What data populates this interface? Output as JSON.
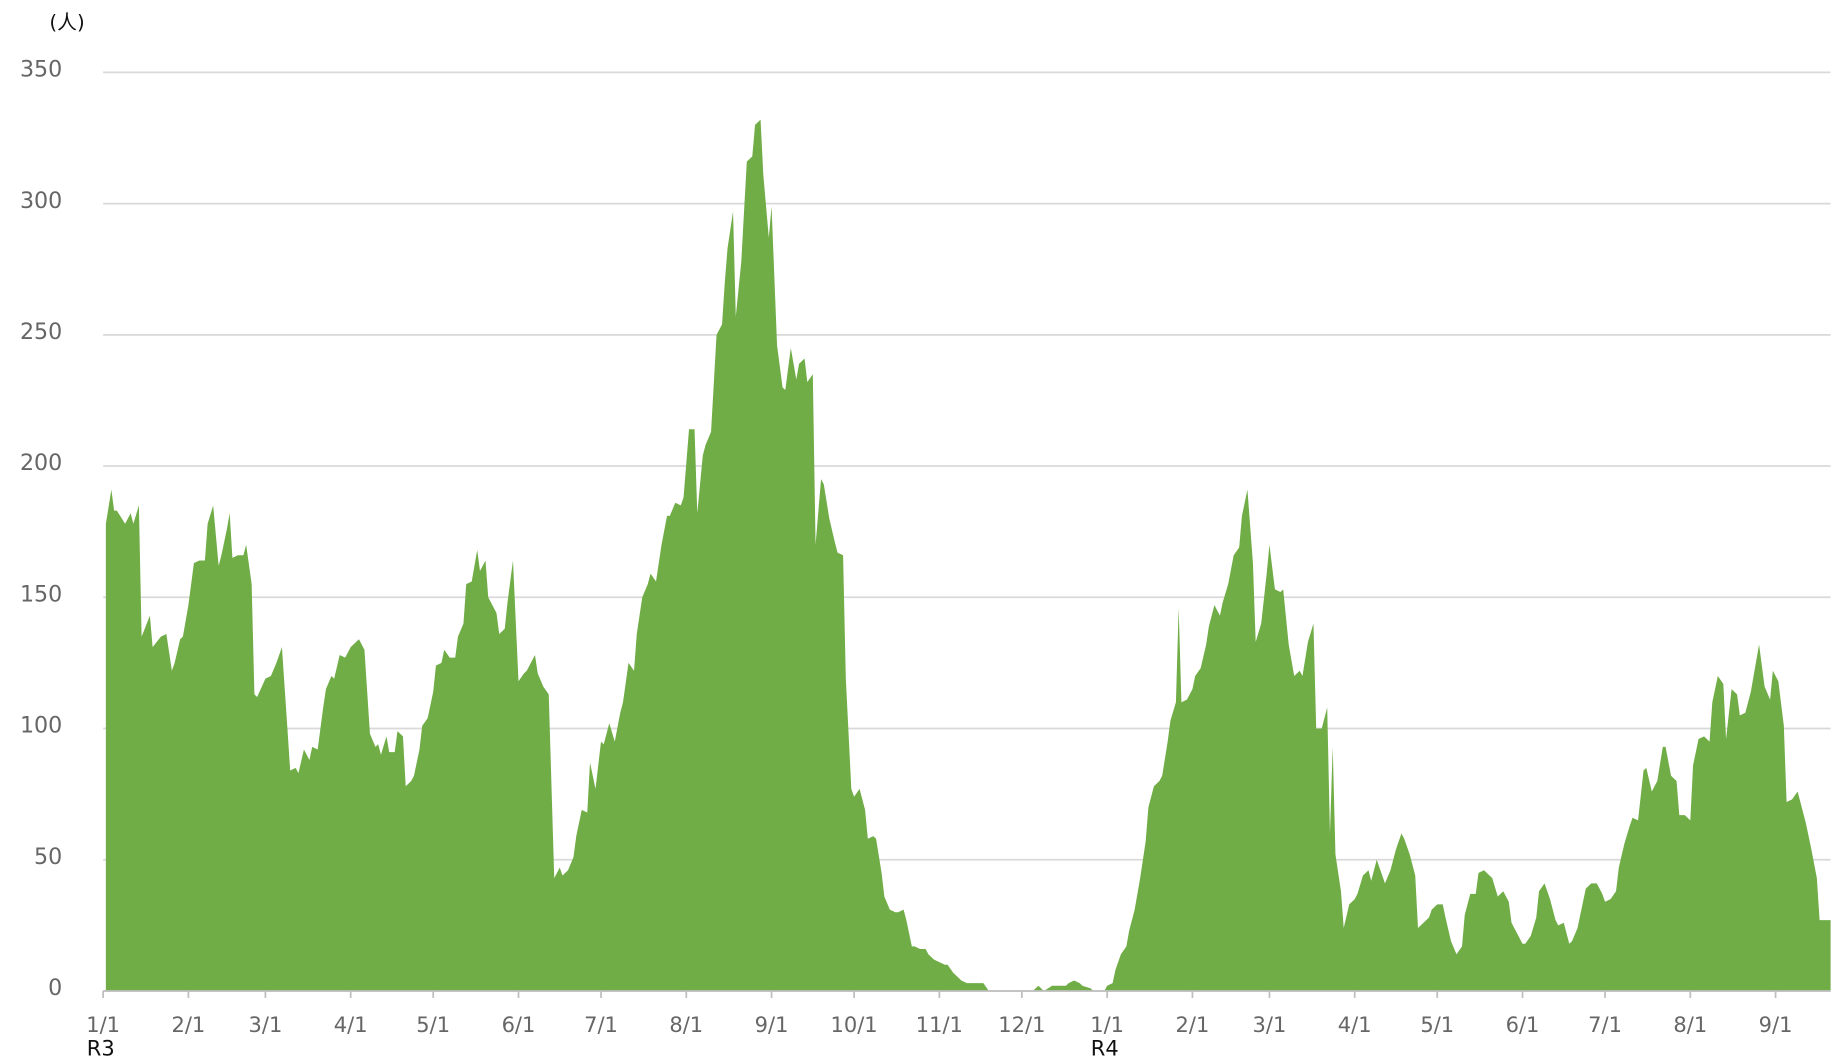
{
  "chart_data": {
    "type": "area",
    "unit_label": "(人)",
    "color": "#70ad47",
    "grid": true,
    "xlim": [
      0,
      628
    ],
    "ylim": [
      0,
      350
    ],
    "yticks": [
      0,
      50,
      100,
      150,
      200,
      250,
      300,
      350
    ],
    "xticks": [
      {
        "value": 0,
        "label": "1/1"
      },
      {
        "value": 31,
        "label": "2/1"
      },
      {
        "value": 59,
        "label": "3/1"
      },
      {
        "value": 90,
        "label": "4/1"
      },
      {
        "value": 120,
        "label": "5/1"
      },
      {
        "value": 151,
        "label": "6/1"
      },
      {
        "value": 181,
        "label": "7/1"
      },
      {
        "value": 212,
        "label": "8/1"
      },
      {
        "value": 243,
        "label": "9/1"
      },
      {
        "value": 273,
        "label": "10/1"
      },
      {
        "value": 304,
        "label": "11/1"
      },
      {
        "value": 334,
        "label": "12/1"
      },
      {
        "value": 365,
        "label": "1/1"
      },
      {
        "value": 396,
        "label": "2/1"
      },
      {
        "value": 424,
        "label": "3/1"
      },
      {
        "value": 455,
        "label": "4/1"
      },
      {
        "value": 485,
        "label": "5/1"
      },
      {
        "value": 516,
        "label": "6/1"
      },
      {
        "value": 546,
        "label": "7/1"
      },
      {
        "value": 577,
        "label": "8/1"
      },
      {
        "value": 608,
        "label": "9/1"
      }
    ],
    "era_labels": [
      {
        "value": 0,
        "label": "R3"
      },
      {
        "value": 365,
        "label": "R4"
      }
    ],
    "x": [
      1,
      3,
      4,
      5,
      8,
      10,
      11,
      13,
      14,
      17,
      18,
      21,
      23,
      25,
      26,
      28,
      29,
      31,
      33,
      35,
      37,
      38,
      40,
      42,
      43,
      45,
      46,
      47,
      49,
      51,
      52,
      54,
      55,
      56,
      59,
      61,
      63,
      65,
      67,
      68,
      70,
      71,
      73,
      75,
      76,
      78,
      80,
      81,
      83,
      84,
      86,
      88,
      90,
      93,
      95,
      97,
      99,
      100,
      101,
      103,
      104,
      106,
      107,
      109,
      110,
      112,
      113,
      115,
      116,
      118,
      120,
      121,
      123,
      124,
      126,
      128,
      129,
      131,
      132,
      134,
      136,
      137,
      139,
      140,
      143,
      144,
      146,
      147,
      149,
      151,
      153,
      154,
      157,
      158,
      160,
      162,
      164,
      166,
      167,
      169,
      171,
      172,
      174,
      176,
      177,
      179,
      181,
      182,
      184,
      186,
      188,
      189,
      191,
      193,
      194,
      196,
      198,
      199,
      201,
      203,
      205,
      206,
      208,
      210,
      211,
      213,
      215,
      216,
      218,
      219,
      221,
      223,
      225,
      226,
      227,
      229,
      230,
      232,
      234,
      236,
      237,
      239,
      240,
      242,
      243,
      245,
      247,
      248,
      250,
      252,
      253,
      255,
      256,
      258,
      259,
      261,
      262,
      264,
      266,
      267,
      269,
      270,
      272,
      273,
      275,
      277,
      278,
      280,
      281,
      283,
      284,
      286,
      288,
      289,
      291,
      292,
      294,
      295,
      297,
      299,
      300,
      302,
      304,
      306,
      307,
      309,
      310,
      312,
      314,
      315,
      317,
      319,
      320,
      322,
      338,
      340,
      341,
      342,
      345,
      346,
      348,
      350,
      351,
      353,
      355,
      356,
      359,
      360,
      364,
      365,
      367,
      368,
      370,
      372,
      373,
      375,
      377,
      379,
      380,
      382,
      384,
      385,
      387,
      388,
      390,
      391,
      392,
      394,
      396,
      397,
      399,
      401,
      402,
      404,
      406,
      407,
      409,
      411,
      413,
      414,
      416,
      418,
      419,
      421,
      423,
      424,
      426,
      428,
      429,
      431,
      433,
      435,
      436,
      438,
      440,
      441,
      443,
      445,
      446,
      447,
      448,
      450,
      451,
      453,
      455,
      456,
      458,
      460,
      461,
      463,
      465,
      466,
      468,
      470,
      472,
      473,
      475,
      477,
      478,
      480,
      482,
      483,
      485,
      487,
      488,
      490,
      492,
      494,
      495,
      497,
      499,
      500,
      502,
      504,
      505,
      507,
      509,
      511,
      512,
      514,
      516,
      517,
      519,
      521,
      522,
      524,
      526,
      528,
      529,
      531,
      533,
      534,
      536,
      538,
      539,
      541,
      543,
      545,
      546,
      548,
      550,
      551,
      553,
      555,
      556,
      558,
      560,
      561,
      563,
      565,
      567,
      568,
      570,
      572,
      573,
      575,
      577,
      578,
      580,
      582,
      584,
      585,
      587,
      589,
      590,
      592,
      594,
      595,
      597,
      599,
      601,
      602,
      604,
      606,
      607,
      609,
      611,
      612,
      614,
      616,
      618,
      619,
      621,
      623,
      624,
      626,
      628
    ],
    "values": [
      178,
      191,
      183,
      183,
      178,
      182,
      178,
      185,
      135,
      143,
      131,
      135,
      136,
      122,
      125,
      134,
      135,
      147,
      163,
      164,
      164,
      178,
      185,
      162,
      166,
      176,
      182,
      165,
      166,
      166,
      170,
      155,
      113,
      112,
      119,
      120,
      125,
      131,
      100,
      84,
      85,
      83,
      92,
      88,
      93,
      92,
      108,
      115,
      120,
      119,
      128,
      127,
      131,
      134,
      130,
      98,
      93,
      94,
      90,
      97,
      91,
      91,
      99,
      97,
      78,
      80,
      82,
      92,
      101,
      104,
      114,
      124,
      125,
      130,
      127,
      127,
      135,
      140,
      155,
      156,
      168,
      160,
      164,
      150,
      144,
      136,
      138,
      148,
      164,
      118,
      121,
      122,
      128,
      121,
      116,
      113,
      43,
      47,
      44,
      46,
      51,
      59,
      69,
      68,
      87,
      77,
      95,
      94,
      102,
      95,
      106,
      110,
      125,
      122,
      136,
      150,
      155,
      159,
      156,
      170,
      181,
      181,
      186,
      185,
      188,
      214,
      214,
      182,
      204,
      208,
      213,
      250,
      254,
      270,
      283,
      297,
      257,
      278,
      316,
      318,
      330,
      332,
      311,
      287,
      299,
      246,
      230,
      229,
      245,
      233,
      239,
      241,
      232,
      235,
      170,
      195,
      193,
      180,
      171,
      167,
      166,
      119,
      77,
      74,
      77,
      69,
      58,
      59,
      58,
      45,
      36,
      31,
      30,
      30,
      31,
      27,
      17,
      17,
      16,
      16,
      14,
      12,
      11,
      10,
      10,
      7,
      6,
      4,
      3,
      3,
      3,
      3,
      3,
      0,
      0,
      2,
      1,
      0,
      2,
      2,
      2,
      2,
      3,
      4,
      3,
      2,
      1,
      0,
      0,
      2,
      3,
      8,
      14,
      17,
      23,
      31,
      43,
      57,
      70,
      78,
      80,
      82,
      95,
      103,
      110,
      146,
      110,
      111,
      115,
      120,
      123,
      132,
      139,
      147,
      143,
      148,
      155,
      166,
      169,
      181,
      191,
      163,
      133,
      140,
      159,
      170,
      153,
      152,
      153,
      132,
      120,
      122,
      120,
      133,
      140,
      100,
      100,
      108,
      60,
      93,
      52,
      38,
      24,
      33,
      35,
      37,
      44,
      46,
      42,
      50,
      44,
      41,
      46,
      54,
      60,
      58,
      52,
      44,
      24,
      26,
      28,
      31,
      33,
      33,
      28,
      19,
      14,
      17,
      29,
      37,
      37,
      45,
      46,
      44,
      43,
      36,
      38,
      34,
      26,
      22,
      18,
      18,
      21,
      28,
      38,
      41,
      35,
      27,
      25,
      26,
      18,
      19,
      24,
      34,
      39,
      41,
      41,
      37,
      34,
      35,
      38,
      47,
      56,
      63,
      66,
      65,
      84,
      85,
      76,
      80,
      93,
      93,
      82,
      80,
      67,
      67,
      65,
      86,
      96,
      97,
      95,
      110,
      120,
      117,
      96,
      115,
      113,
      105,
      106,
      114,
      126,
      132,
      116,
      111,
      122,
      118,
      101,
      72,
      73,
      76,
      68,
      64,
      54,
      43,
      27,
      27,
      27
    ]
  }
}
